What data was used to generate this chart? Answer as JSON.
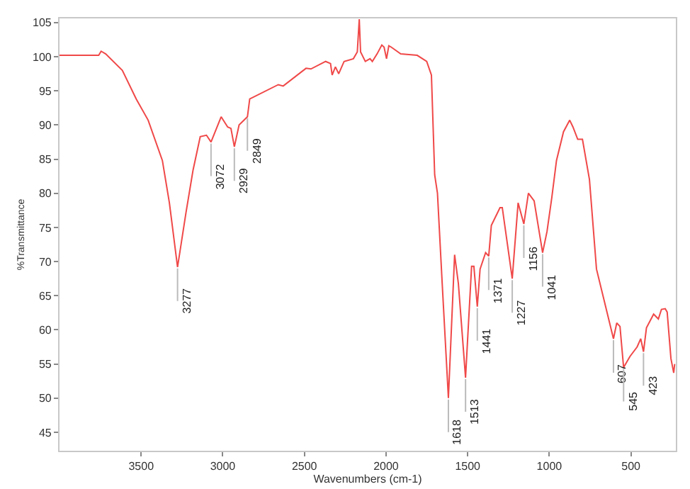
{
  "chart_data": {
    "type": "line",
    "xlabel": "Wavenumbers (cm-1)",
    "ylabel": "%Transmittance",
    "xlim": [
      4000,
      225
    ],
    "xticks": [
      3500,
      3000,
      2500,
      2000,
      1500,
      1000,
      500
    ],
    "ylim": [
      42.3,
      105.6
    ],
    "yticks": [
      45,
      50,
      55,
      60,
      65,
      70,
      75,
      80,
      85,
      90,
      95,
      100,
      105
    ],
    "grid": false,
    "legend": false,
    "marker": "none",
    "line_style": "solid",
    "series": [
      {
        "color": "#f04848",
        "x": [
          4000,
          3760,
          3745,
          3717,
          3615,
          3530,
          3457,
          3370,
          3327,
          3277,
          3225,
          3182,
          3138,
          3100,
          3072,
          3010,
          2970,
          2950,
          2929,
          2900,
          2870,
          2849,
          2835,
          2660,
          2630,
          2490,
          2460,
          2370,
          2340,
          2330,
          2310,
          2290,
          2257,
          2200,
          2176,
          2164,
          2156,
          2127,
          2098,
          2084,
          2055,
          2026,
          2012,
          1997,
          1983,
          1968,
          1910,
          1809,
          1751,
          1722,
          1702,
          1685,
          1656,
          1618,
          1580,
          1557,
          1513,
          1476,
          1462,
          1441,
          1424,
          1390,
          1371,
          1355,
          1302,
          1288,
          1227,
          1191,
          1156,
          1128,
          1093,
          1041,
          1014,
          985,
          956,
          913,
          875,
          855,
          826,
          797,
          754,
          711,
          668,
          607,
          587,
          567,
          545,
          506,
          462,
          440,
          423,
          405,
          361,
          332,
          313,
          290,
          278,
          255,
          238,
          232
        ],
        "values": [
          100.2,
          100.2,
          100.8,
          100.4,
          98,
          93.8,
          90.7,
          84.8,
          78.6,
          69.2,
          77.2,
          83.4,
          88.3,
          88.5,
          87.5,
          91.2,
          89.7,
          89.5,
          86.8,
          90,
          90.7,
          91.2,
          93.8,
          95.9,
          95.7,
          98.3,
          98.2,
          99.3,
          99,
          97.3,
          98.5,
          97.5,
          99.3,
          99.7,
          100.7,
          105.5,
          100.7,
          99.3,
          99.7,
          99.3,
          100.4,
          101.7,
          101.4,
          99.7,
          101.6,
          101.4,
          100.4,
          100.2,
          99.3,
          97.3,
          82.7,
          80,
          66.8,
          50,
          71,
          66.8,
          53,
          69.3,
          69.3,
          63.4,
          68.9,
          71.3,
          70.8,
          75.3,
          77.9,
          77.9,
          67.5,
          78.6,
          75.5,
          80,
          78.9,
          71.3,
          74.4,
          79.3,
          84.8,
          89,
          90.7,
          89.7,
          87.9,
          87.9,
          82,
          68.9,
          64.7,
          58.7,
          61,
          60.5,
          54.5,
          56.1,
          57.5,
          58.7,
          56.8,
          60.3,
          62.3,
          61.6,
          63,
          63.1,
          62.6,
          55.8,
          53.7,
          55
        ]
      }
    ],
    "annotations": [
      {
        "text": "3277",
        "x": 3277,
        "y": 69.2
      },
      {
        "text": "3072",
        "x": 3072,
        "y": 87.5
      },
      {
        "text": "2929",
        "x": 2929,
        "y": 86.8
      },
      {
        "text": "2849",
        "x": 2849,
        "y": 91.2
      },
      {
        "text": "1618",
        "x": 1618,
        "y": 50
      },
      {
        "text": "1513",
        "x": 1513,
        "y": 53
      },
      {
        "text": "1441",
        "x": 1441,
        "y": 63.4
      },
      {
        "text": "1371",
        "x": 1371,
        "y": 70.8
      },
      {
        "text": "1227",
        "x": 1227,
        "y": 67.5
      },
      {
        "text": "1156",
        "x": 1156,
        "y": 75.5
      },
      {
        "text": "1041",
        "x": 1041,
        "y": 71.3
      },
      {
        "text": "607",
        "x": 607,
        "y": 58.7
      },
      {
        "text": "545",
        "x": 545,
        "y": 54.5
      },
      {
        "text": "423",
        "x": 423,
        "y": 56.8
      }
    ]
  }
}
